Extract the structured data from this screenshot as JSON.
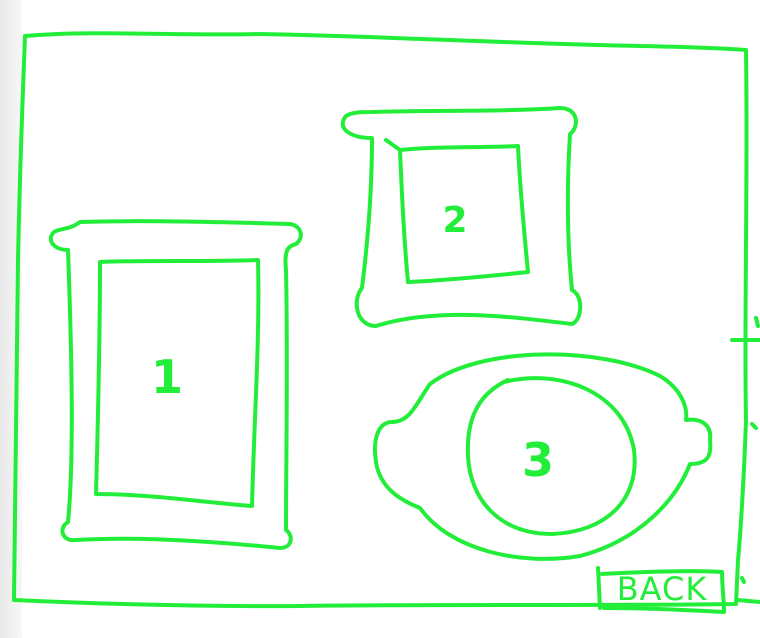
{
  "colors": {
    "stroke": "#22ee3a",
    "background": "#ffffff"
  },
  "artworks": [
    {
      "label": "1",
      "frame_style": "ornate-rectangular-frame"
    },
    {
      "label": "2",
      "frame_style": "ornate-square-frame"
    },
    {
      "label": "3",
      "frame_style": "oval-platter-frame"
    }
  ],
  "navigation": {
    "back_label": "BACK"
  }
}
